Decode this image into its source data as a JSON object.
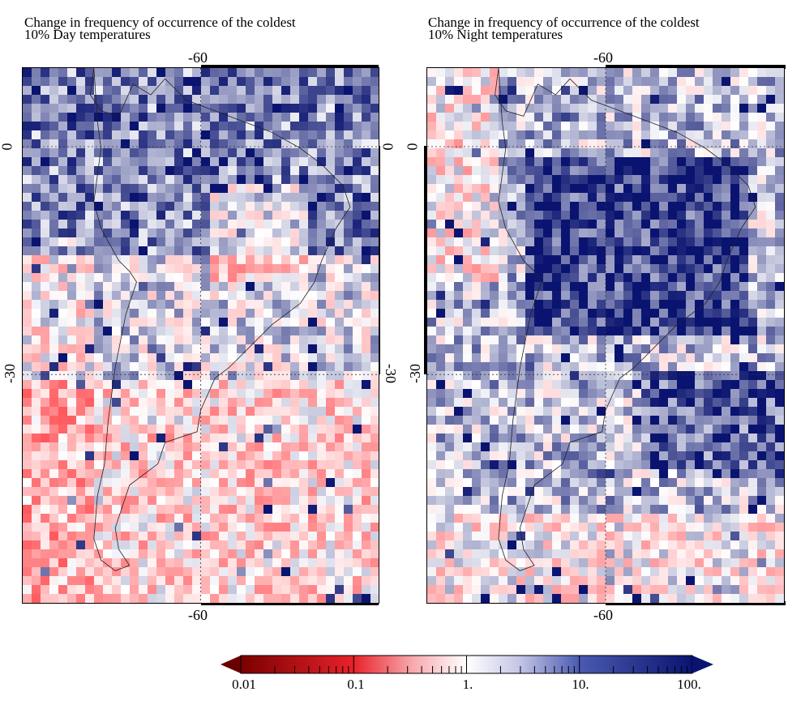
{
  "left_panel": {
    "title_line1": "Change in frequency of occurrence of the coldest",
    "title_line2": "10% Day temperatures",
    "top_lon_label": "-60",
    "bottom_lon_label": "-60",
    "left_lat_labels": [
      "0",
      "-30"
    ],
    "right_lat_labels": [
      "0",
      "-30"
    ]
  },
  "right_panel": {
    "title_line1": "Change in frequency of occurrence of the coldest",
    "title_line2": "10% Night temperatures",
    "top_lon_label": "-60",
    "bottom_lon_label": "-60",
    "left_lat_labels": [
      "0",
      "-30"
    ]
  },
  "colorbar": {
    "tick_labels": [
      "0.01",
      "0.1",
      "1.",
      "10.",
      "100."
    ],
    "scale": "log",
    "range": [
      0.01,
      100
    ],
    "low_color": "#6b0000",
    "mid_color": "#ffffff",
    "high_color": "#0a1470"
  },
  "colors": {
    "red_extreme": "#b2182b",
    "blue_extreme": "#0a1470",
    "coast": "#222222",
    "grid": "#333333"
  }
}
